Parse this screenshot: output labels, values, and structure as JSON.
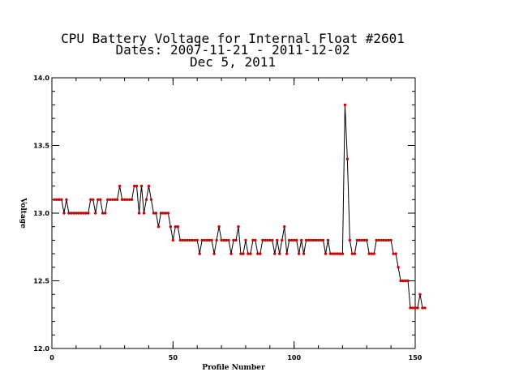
{
  "chart_data": {
    "type": "line",
    "title_lines": [
      "CPU Battery Voltage for Internal Float #2601",
      "Dates:  2007-11-21 -  2011-12-02",
      "Dec  5, 2011"
    ],
    "xlabel": "Profile Number",
    "ylabel": "Voltage",
    "xlim": [
      0,
      150
    ],
    "ylim": [
      12.0,
      14.0
    ],
    "x_ticks": [
      0,
      50,
      100,
      150
    ],
    "y_ticks": [
      12.0,
      12.5,
      13.0,
      13.5,
      14.0
    ],
    "x_tick_labels": [
      "0",
      "50",
      "100",
      "150"
    ],
    "y_tick_labels": [
      "12.0",
      "12.5",
      "13.0",
      "13.5",
      "14.0"
    ],
    "x_minor_step": 10,
    "y_minor_step": 0.1,
    "grid": false,
    "line_color": "#000000",
    "marker_color": "#cc0000",
    "series": [
      {
        "values": [
          13.1,
          13.1,
          13.1,
          13.1,
          13.0,
          13.1,
          13.0,
          13.0,
          13.0,
          13.0,
          13.0,
          13.0,
          13.0,
          13.0,
          13.0,
          13.1,
          13.1,
          13.0,
          13.1,
          13.1,
          13.0,
          13.0,
          13.1,
          13.1,
          13.1,
          13.1,
          13.1,
          13.2,
          13.1,
          13.1,
          13.1,
          13.1,
          13.1,
          13.2,
          13.2,
          13.0,
          13.2,
          13.0,
          13.1,
          13.2,
          13.1,
          13.0,
          13.0,
          12.9,
          13.0,
          13.0,
          13.0,
          13.0,
          12.9,
          12.8,
          12.9,
          12.9,
          12.8,
          12.8,
          12.8,
          12.8,
          12.8,
          12.8,
          12.8,
          12.8,
          12.7,
          12.8,
          12.8,
          12.8,
          12.8,
          12.8,
          12.7,
          12.8,
          12.9,
          12.8,
          12.8,
          12.8,
          12.8,
          12.7,
          12.8,
          12.8,
          12.9,
          12.7,
          12.7,
          12.8,
          12.7,
          12.7,
          12.8,
          12.8,
          12.7,
          12.7,
          12.8,
          12.8,
          12.8,
          12.8,
          12.8,
          12.7,
          12.8,
          12.7,
          12.8,
          12.9,
          12.7,
          12.8,
          12.8,
          12.8,
          12.8,
          12.7,
          12.8,
          12.7,
          12.8,
          12.8,
          12.8,
          12.8,
          12.8,
          12.8,
          12.8,
          12.8,
          12.7,
          12.8,
          12.7,
          12.7,
          12.7,
          12.7,
          12.7,
          12.7,
          13.8,
          13.4,
          12.8,
          12.7,
          12.7,
          12.8,
          12.8,
          12.8,
          12.8,
          12.8,
          12.7,
          12.7,
          12.7,
          12.8,
          12.8,
          12.8,
          12.8,
          12.8,
          12.8,
          12.8,
          12.7,
          12.7,
          12.6,
          12.5,
          12.5,
          12.5,
          12.5,
          12.3,
          12.3,
          12.3,
          12.3,
          12.4,
          12.3,
          12.3
        ]
      }
    ]
  }
}
